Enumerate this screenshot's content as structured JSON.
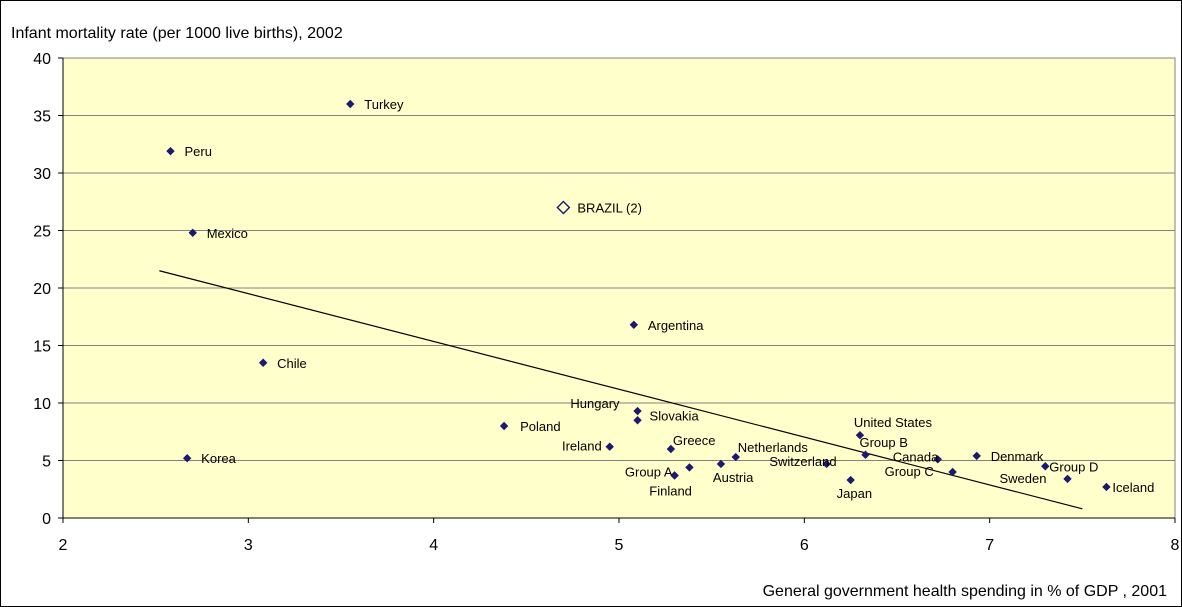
{
  "chart_data": {
    "type": "scatter",
    "title": "",
    "ylabel": "Infant mortality rate (per 1000 live births), 2002",
    "xlabel": "General government health spending in % of GDP , 2001",
    "xlim": [
      2,
      8
    ],
    "ylim": [
      0,
      40
    ],
    "xticks": [
      2,
      3,
      4,
      5,
      6,
      7,
      8
    ],
    "yticks": [
      0,
      5,
      10,
      15,
      20,
      25,
      30,
      35,
      40
    ],
    "grid": "horizontal",
    "legend": "none",
    "colors": {
      "plot_bg": "#ffffcc",
      "marker": "#1a1a6e",
      "highlight_marker": "#1a1a6e",
      "trendline": "#000000",
      "grid": "#808080"
    },
    "points": [
      {
        "label": "Turkey",
        "x": 3.55,
        "y": 36.0
      },
      {
        "label": "Peru",
        "x": 2.58,
        "y": 31.9
      },
      {
        "label": "BRAZIL (2)",
        "x": 4.7,
        "y": 27.0,
        "highlight": true
      },
      {
        "label": "Mexico",
        "x": 2.7,
        "y": 24.8
      },
      {
        "label": "Argentina",
        "x": 5.08,
        "y": 16.8
      },
      {
        "label": "Chile",
        "x": 3.08,
        "y": 13.5
      },
      {
        "label": "Hungary",
        "x": 5.1,
        "y": 9.3
      },
      {
        "label": "Slovakia",
        "x": 5.1,
        "y": 8.5
      },
      {
        "label": "Poland",
        "x": 4.38,
        "y": 8.0
      },
      {
        "label": "Ireland",
        "x": 4.95,
        "y": 6.2
      },
      {
        "label": "Greece",
        "x": 5.28,
        "y": 6.0
      },
      {
        "label": "Korea",
        "x": 2.67,
        "y": 5.2
      },
      {
        "label": "Group A",
        "x": 5.3,
        "y": 3.7
      },
      {
        "label": "",
        "x": 5.38,
        "y": 4.4
      },
      {
        "label": "Finland",
        "x": 5.3,
        "y": 3.7
      },
      {
        "label": "Austria",
        "x": 5.55,
        "y": 4.7
      },
      {
        "label": "Netherlands",
        "x": 5.63,
        "y": 5.3
      },
      {
        "label": "Switzerland",
        "x": 6.12,
        "y": 4.7
      },
      {
        "label": "Japan",
        "x": 6.25,
        "y": 3.3
      },
      {
        "label": "United States",
        "x": 6.3,
        "y": 7.2
      },
      {
        "label": "Group B",
        "x": 6.33,
        "y": 5.5
      },
      {
        "label": "Canada",
        "x": 6.72,
        "y": 5.1
      },
      {
        "label": "Group C",
        "x": 6.8,
        "y": 4.0
      },
      {
        "label": "Denmark",
        "x": 6.93,
        "y": 5.4
      },
      {
        "label": "Group D",
        "x": 7.3,
        "y": 4.5
      },
      {
        "label": "Sweden",
        "x": 7.42,
        "y": 3.4
      },
      {
        "label": "Iceland",
        "x": 7.63,
        "y": 2.7
      }
    ],
    "trendline": {
      "x": [
        2.52,
        7.5
      ],
      "y": [
        21.5,
        0.8
      ]
    }
  }
}
